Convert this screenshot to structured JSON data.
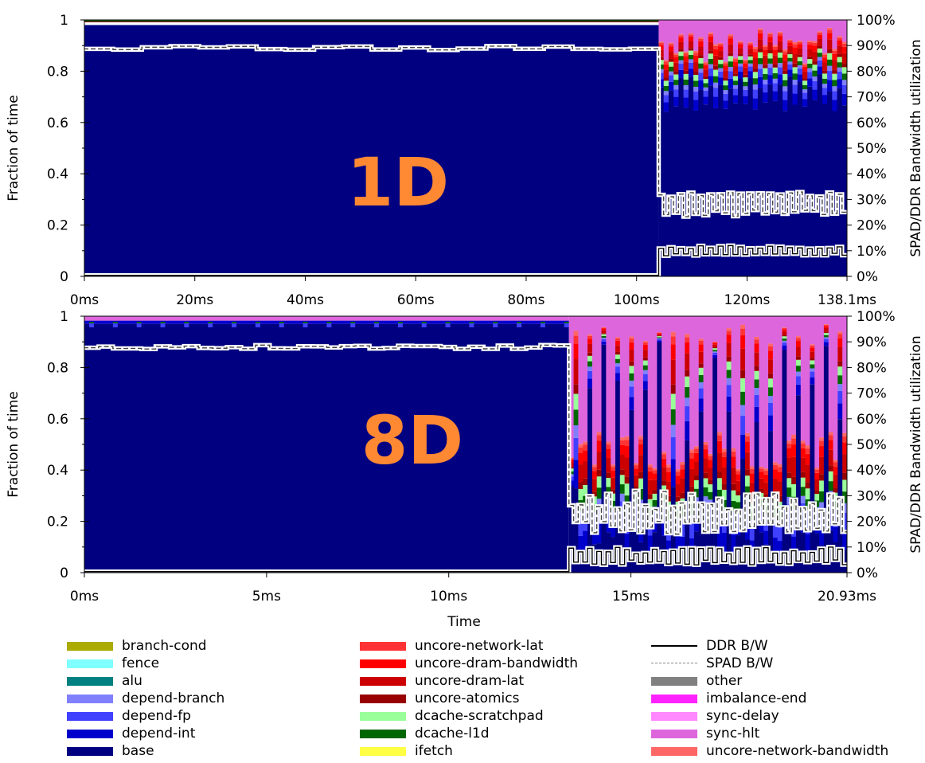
{
  "chart_data": [
    {
      "type": "area",
      "panel_label": "1D",
      "ylabel": "Fraction of time",
      "y2label": "SPAD/DDR Bandwidth utilization",
      "xlabel": "",
      "x_tick_labels": [
        "0ms",
        "20ms",
        "40ms",
        "60ms",
        "80ms",
        "100ms",
        "120ms",
        "138.1ms"
      ],
      "x_tick_values": [
        0,
        20,
        40,
        60,
        80,
        100,
        120,
        138.1
      ],
      "xlim": [
        0,
        138.1
      ],
      "ylim": [
        0,
        1
      ],
      "y_tick_labels": [
        "0",
        "0.2",
        "0.4",
        "0.6",
        "0.8",
        "1"
      ],
      "y2_tick_labels": [
        "0%",
        "10%",
        "20%",
        "30%",
        "40%",
        "50%",
        "60%",
        "70%",
        "80%",
        "90%",
        "100%"
      ],
      "phase1_end_ms": 104,
      "phase1_base_fraction": 0.98,
      "phase2_base_fraction_range": [
        0.64,
        0.79
      ],
      "phase2_sync_hlt_fraction_range": [
        0.03,
        0.17
      ],
      "spad_bw_percent": {
        "phase1": 89,
        "phase2_range": [
          23,
          33
        ]
      },
      "ddr_bw_percent": {
        "phase1": 0,
        "phase2_range": [
          8,
          12
        ]
      }
    },
    {
      "type": "area",
      "panel_label": "8D",
      "ylabel": "Fraction of time",
      "y2label": "SPAD/DDR Bandwidth utilization",
      "xlabel": "Time",
      "x_tick_labels": [
        "0ms",
        "5ms",
        "10ms",
        "15ms",
        "20.93ms"
      ],
      "x_tick_values": [
        0,
        5,
        10,
        15,
        20.93
      ],
      "xlim": [
        0,
        20.93
      ],
      "ylim": [
        0,
        1
      ],
      "y_tick_labels": [
        "0",
        "0.2",
        "0.4",
        "0.6",
        "0.8",
        "1"
      ],
      "y2_tick_labels": [
        "0%",
        "10%",
        "20%",
        "30%",
        "40%",
        "50%",
        "60%",
        "70%",
        "80%",
        "90%",
        "100%"
      ],
      "phase1_end_ms": 13.3,
      "phase1_base_fraction": 0.97,
      "phase2_base_fraction_range": [
        0.05,
        0.97
      ],
      "phase2_sync_hlt_fraction_range": [
        0.03,
        0.6
      ],
      "spad_bw_percent": {
        "phase1": 88,
        "phase2_range": [
          15,
          32
        ]
      },
      "ddr_bw_percent": {
        "phase1": 0,
        "phase2_range": [
          3,
          10
        ]
      }
    }
  ],
  "legend": {
    "columns": [
      [
        {
          "label": "branch-cond",
          "color": "#AAAA00",
          "kind": "box"
        },
        {
          "label": "fence",
          "color": "#7FFFFF",
          "kind": "box"
        },
        {
          "label": "alu",
          "color": "#008080",
          "kind": "box"
        },
        {
          "label": "depend-branch",
          "color": "#8080FF",
          "kind": "box"
        },
        {
          "label": "depend-fp",
          "color": "#4040FF",
          "kind": "box"
        },
        {
          "label": "depend-int",
          "color": "#0000CC",
          "kind": "box"
        },
        {
          "label": "base",
          "color": "#000080",
          "kind": "box"
        }
      ],
      [
        {
          "label": "uncore-network-lat",
          "color": "#FF3333",
          "kind": "box"
        },
        {
          "label": "uncore-dram-bandwidth",
          "color": "#FF0000",
          "kind": "box"
        },
        {
          "label": "uncore-dram-lat",
          "color": "#CC0000",
          "kind": "box"
        },
        {
          "label": "uncore-atomics",
          "color": "#990000",
          "kind": "box"
        },
        {
          "label": "dcache-scratchpad",
          "color": "#99FF99",
          "kind": "box"
        },
        {
          "label": "dcache-l1d",
          "color": "#006600",
          "kind": "box"
        },
        {
          "label": "ifetch",
          "color": "#FFFF44",
          "kind": "box"
        }
      ],
      [
        {
          "label": "DDR B/W",
          "color": "#000000",
          "kind": "solid-line"
        },
        {
          "label": "SPAD B/W",
          "color": "#888888",
          "kind": "dashed-line"
        },
        {
          "label": "other",
          "color": "#808080",
          "kind": "box"
        },
        {
          "label": "imbalance-end",
          "color": "#FF22FF",
          "kind": "box"
        },
        {
          "label": "sync-delay",
          "color": "#FF88FF",
          "kind": "box"
        },
        {
          "label": "sync-hlt",
          "color": "#DD66DD",
          "kind": "box"
        },
        {
          "label": "uncore-network-bandwidth",
          "color": "#FF6666",
          "kind": "box"
        }
      ]
    ]
  }
}
